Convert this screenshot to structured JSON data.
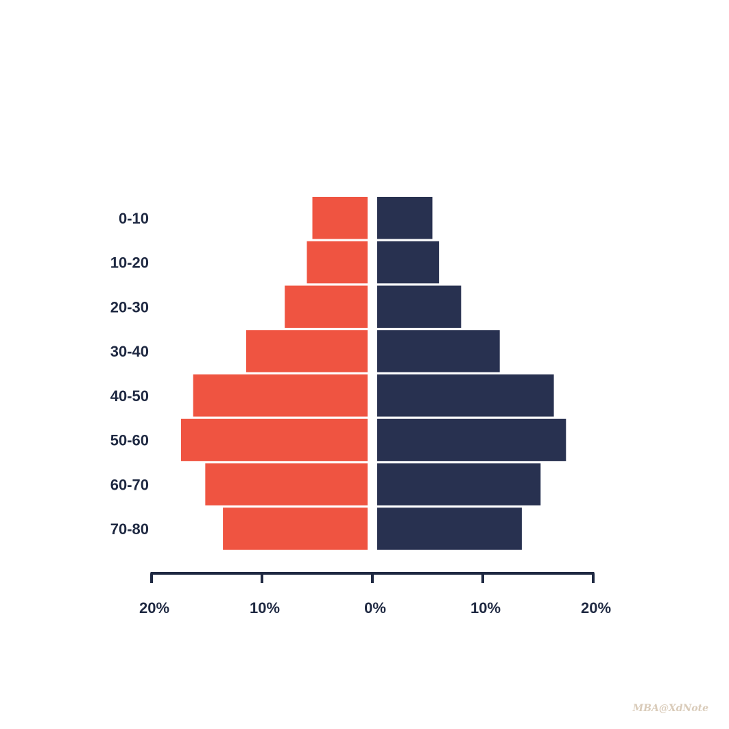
{
  "chart_data": {
    "type": "bar",
    "orientation": "horizontal",
    "layout": "population-pyramid",
    "categories": [
      "0-10",
      "10-20",
      "20-30",
      "30-40",
      "40-50",
      "50-60",
      "60-70",
      "70-80"
    ],
    "series": [
      {
        "side": "left",
        "color": "#ef5441",
        "values": [
          5,
          5.5,
          7.5,
          11,
          15.8,
          16.9,
          14.7,
          13.1
        ]
      },
      {
        "side": "right",
        "color": "#283150",
        "values": [
          5,
          5.6,
          7.6,
          11.1,
          16,
          17.1,
          14.8,
          13.1
        ]
      }
    ],
    "xlim": [
      -20,
      20
    ],
    "x_ticks": [
      -20,
      -10,
      0,
      10,
      20
    ],
    "x_tick_labels": [
      "20%",
      "10%",
      "0%",
      "10%",
      "20%"
    ],
    "axis_color": "#1f2942",
    "grid": false,
    "legend": "none"
  },
  "watermark": "MBA@XdNote"
}
